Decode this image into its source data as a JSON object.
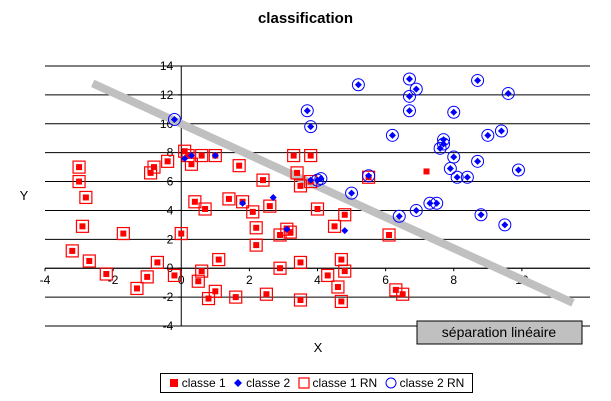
{
  "chart_data": {
    "type": "scatter",
    "title": "classification",
    "xlabel": "X",
    "ylabel": "Y",
    "xlim": [
      -4,
      12
    ],
    "ylim": [
      -4,
      14
    ],
    "x_ticks": [
      -4,
      -2,
      0,
      2,
      4,
      6,
      8,
      10
    ],
    "y_ticks": [
      -4,
      -2,
      0,
      2,
      4,
      6,
      8,
      10,
      12,
      14
    ],
    "grid": "horizontal",
    "legend_position": "bottom",
    "annotation": "séparation linéaire",
    "separation_line": {
      "x": [
        -2.6,
        11.5
      ],
      "y": [
        12.8,
        -2.4
      ],
      "color": "#c0c0c0"
    },
    "series": [
      {
        "name": "classe 1",
        "marker": "filled-square",
        "color": "#ff0000",
        "points": [
          [
            -3.0,
            7.0
          ],
          [
            -3.0,
            6.0
          ],
          [
            -2.9,
            2.9
          ],
          [
            -2.8,
            4.9
          ],
          [
            -2.7,
            0.5
          ],
          [
            -3.2,
            1.2
          ],
          [
            -2.2,
            -0.4
          ],
          [
            -1.7,
            2.4
          ],
          [
            -1.3,
            -1.4
          ],
          [
            -1.0,
            -0.6
          ],
          [
            -0.9,
            6.6
          ],
          [
            -0.8,
            7.0
          ],
          [
            -0.7,
            0.4
          ],
          [
            -0.4,
            7.4
          ],
          [
            -0.2,
            -0.5
          ],
          [
            0.0,
            2.4
          ],
          [
            0.1,
            8.1
          ],
          [
            0.2,
            7.8
          ],
          [
            0.3,
            7.2
          ],
          [
            0.4,
            4.6
          ],
          [
            0.5,
            -0.9
          ],
          [
            0.6,
            -0.2
          ],
          [
            0.7,
            4.1
          ],
          [
            0.6,
            7.8
          ],
          [
            0.8,
            -2.1
          ],
          [
            1.0,
            -1.6
          ],
          [
            1.0,
            7.8
          ],
          [
            1.1,
            0.6
          ],
          [
            1.4,
            4.8
          ],
          [
            1.6,
            -2.0
          ],
          [
            1.7,
            7.1
          ],
          [
            1.8,
            4.6
          ],
          [
            2.1,
            3.9
          ],
          [
            2.2,
            2.8
          ],
          [
            2.2,
            1.6
          ],
          [
            2.4,
            6.1
          ],
          [
            2.5,
            -1.8
          ],
          [
            2.6,
            4.3
          ],
          [
            2.9,
            2.3
          ],
          [
            2.9,
            0.0
          ],
          [
            3.1,
            2.7
          ],
          [
            3.2,
            2.5
          ],
          [
            3.3,
            7.8
          ],
          [
            3.4,
            6.6
          ],
          [
            3.5,
            5.7
          ],
          [
            3.5,
            0.4
          ],
          [
            3.5,
            -2.2
          ],
          [
            3.8,
            6.0
          ],
          [
            3.8,
            7.8
          ],
          [
            4.0,
            4.1
          ],
          [
            4.3,
            -0.5
          ],
          [
            4.5,
            2.9
          ],
          [
            4.6,
            -1.3
          ],
          [
            4.7,
            -2.3
          ],
          [
            4.7,
            0.6
          ],
          [
            4.8,
            -0.2
          ],
          [
            4.8,
            3.7
          ],
          [
            5.5,
            6.3
          ],
          [
            6.1,
            2.3
          ],
          [
            6.3,
            -1.5
          ],
          [
            6.5,
            -1.8
          ],
          [
            7.2,
            6.7
          ]
        ]
      },
      {
        "name": "classe 2",
        "marker": "filled-diamond",
        "color": "#0000ff",
        "points": [
          [
            -0.2,
            10.3
          ],
          [
            0.1,
            7.6
          ],
          [
            0.3,
            7.8
          ],
          [
            1.0,
            7.8
          ],
          [
            1.8,
            4.5
          ],
          [
            2.7,
            4.9
          ],
          [
            3.1,
            2.7
          ],
          [
            3.8,
            6.1
          ],
          [
            4.1,
            6.2
          ],
          [
            4.8,
            2.6
          ],
          [
            3.7,
            10.9
          ],
          [
            3.8,
            9.8
          ],
          [
            4.0,
            6.1
          ],
          [
            4.1,
            6.2
          ],
          [
            5.0,
            5.2
          ],
          [
            5.2,
            12.7
          ],
          [
            5.5,
            6.4
          ],
          [
            6.2,
            9.2
          ],
          [
            6.4,
            3.6
          ],
          [
            6.7,
            13.1
          ],
          [
            6.7,
            11.9
          ],
          [
            6.7,
            10.9
          ],
          [
            6.9,
            12.4
          ],
          [
            6.9,
            4.0
          ],
          [
            7.3,
            4.5
          ],
          [
            7.5,
            4.5
          ],
          [
            7.6,
            8.3
          ],
          [
            7.7,
            8.6
          ],
          [
            7.7,
            8.9
          ],
          [
            7.9,
            6.9
          ],
          [
            8.0,
            10.8
          ],
          [
            8.0,
            7.7
          ],
          [
            8.1,
            6.3
          ],
          [
            8.4,
            6.3
          ],
          [
            8.7,
            13.0
          ],
          [
            8.7,
            7.4
          ],
          [
            8.8,
            3.7
          ],
          [
            9.0,
            9.2
          ],
          [
            9.4,
            9.5
          ],
          [
            9.5,
            3.0
          ],
          [
            9.6,
            12.1
          ],
          [
            9.9,
            6.8
          ]
        ]
      },
      {
        "name": "classe 1 RN",
        "marker": "open-square",
        "color": "#ff0000",
        "points": [
          [
            -3.0,
            7.0
          ],
          [
            -3.0,
            6.0
          ],
          [
            -2.9,
            2.9
          ],
          [
            -2.8,
            4.9
          ],
          [
            -2.7,
            0.5
          ],
          [
            -3.2,
            1.2
          ],
          [
            -2.2,
            -0.4
          ],
          [
            -1.7,
            2.4
          ],
          [
            -1.3,
            -1.4
          ],
          [
            -1.0,
            -0.6
          ],
          [
            -0.9,
            6.6
          ],
          [
            -0.8,
            7.0
          ],
          [
            -0.7,
            0.4
          ],
          [
            -0.4,
            7.4
          ],
          [
            -0.2,
            -0.5
          ],
          [
            0.0,
            2.4
          ],
          [
            0.1,
            8.1
          ],
          [
            0.2,
            7.8
          ],
          [
            0.3,
            7.2
          ],
          [
            0.4,
            4.6
          ],
          [
            0.5,
            -0.9
          ],
          [
            0.6,
            -0.2
          ],
          [
            0.7,
            4.1
          ],
          [
            0.6,
            7.8
          ],
          [
            0.8,
            -2.1
          ],
          [
            1.0,
            -1.6
          ],
          [
            1.0,
            7.8
          ],
          [
            1.1,
            0.6
          ],
          [
            1.4,
            4.8
          ],
          [
            1.6,
            -2.0
          ],
          [
            1.7,
            7.1
          ],
          [
            1.8,
            4.6
          ],
          [
            2.1,
            3.9
          ],
          [
            2.2,
            2.8
          ],
          [
            2.2,
            1.6
          ],
          [
            2.4,
            6.1
          ],
          [
            2.5,
            -1.8
          ],
          [
            2.6,
            4.3
          ],
          [
            2.9,
            2.3
          ],
          [
            2.9,
            0.0
          ],
          [
            3.1,
            2.7
          ],
          [
            3.2,
            2.5
          ],
          [
            3.3,
            7.8
          ],
          [
            3.4,
            6.6
          ],
          [
            3.5,
            5.7
          ],
          [
            3.5,
            0.4
          ],
          [
            3.5,
            -2.2
          ],
          [
            3.8,
            6.0
          ],
          [
            3.8,
            7.8
          ],
          [
            4.0,
            4.1
          ],
          [
            4.3,
            -0.5
          ],
          [
            4.5,
            2.9
          ],
          [
            4.6,
            -1.3
          ],
          [
            4.7,
            -2.3
          ],
          [
            4.7,
            0.6
          ],
          [
            4.8,
            -0.2
          ],
          [
            4.8,
            3.7
          ],
          [
            5.5,
            6.3
          ],
          [
            6.1,
            2.3
          ],
          [
            6.3,
            -1.5
          ],
          [
            6.5,
            -1.8
          ]
        ]
      },
      {
        "name": "classe 2 RN",
        "marker": "open-circle",
        "color": "#0000ff",
        "points": [
          [
            -0.2,
            10.3
          ],
          [
            3.7,
            10.9
          ],
          [
            3.8,
            9.8
          ],
          [
            4.0,
            6.1
          ],
          [
            4.1,
            6.2
          ],
          [
            5.0,
            5.2
          ],
          [
            5.2,
            12.7
          ],
          [
            5.5,
            6.4
          ],
          [
            6.2,
            9.2
          ],
          [
            6.4,
            3.6
          ],
          [
            6.7,
            13.1
          ],
          [
            6.7,
            11.9
          ],
          [
            6.7,
            10.9
          ],
          [
            6.9,
            12.4
          ],
          [
            6.9,
            4.0
          ],
          [
            7.3,
            4.5
          ],
          [
            7.5,
            4.5
          ],
          [
            7.6,
            8.3
          ],
          [
            7.7,
            8.6
          ],
          [
            7.7,
            8.9
          ],
          [
            7.9,
            6.9
          ],
          [
            8.0,
            10.8
          ],
          [
            8.0,
            7.7
          ],
          [
            8.1,
            6.3
          ],
          [
            8.4,
            6.3
          ],
          [
            8.7,
            13.0
          ],
          [
            8.7,
            7.4
          ],
          [
            8.8,
            3.7
          ],
          [
            9.0,
            9.2
          ],
          [
            9.4,
            9.5
          ],
          [
            9.5,
            3.0
          ],
          [
            9.6,
            12.1
          ],
          [
            9.9,
            6.8
          ]
        ]
      }
    ]
  }
}
